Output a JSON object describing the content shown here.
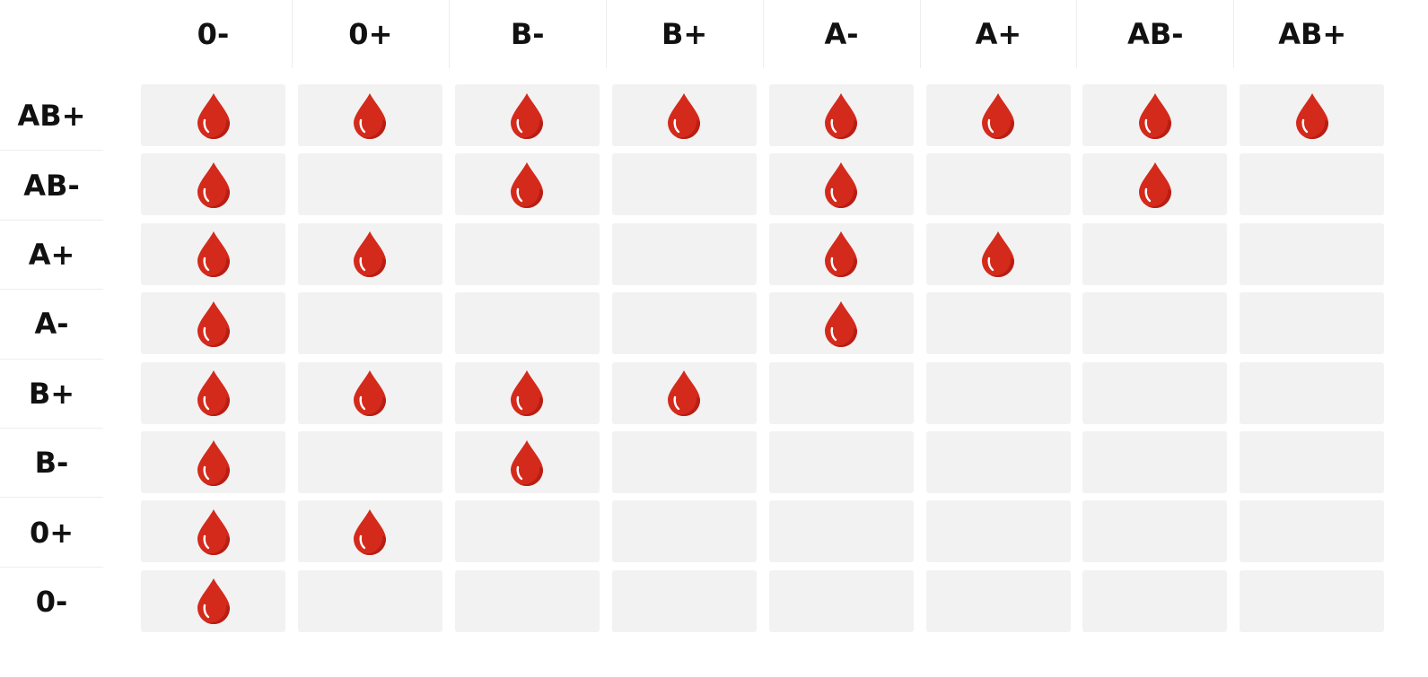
{
  "table": {
    "columns": [
      "0-",
      "0+",
      "B-",
      "B+",
      "A-",
      "A+",
      "AB-",
      "AB+"
    ],
    "rows": [
      "AB+",
      "AB-",
      "A+",
      "A-",
      "B+",
      "B-",
      "0+",
      "0-"
    ],
    "matrix": [
      [
        true,
        true,
        true,
        true,
        true,
        true,
        true,
        true
      ],
      [
        true,
        false,
        true,
        false,
        true,
        false,
        true,
        false
      ],
      [
        true,
        true,
        false,
        false,
        true,
        true,
        false,
        false
      ],
      [
        true,
        false,
        false,
        false,
        true,
        false,
        false,
        false
      ],
      [
        true,
        true,
        true,
        true,
        false,
        false,
        false,
        false
      ],
      [
        true,
        false,
        true,
        false,
        false,
        false,
        false,
        false
      ],
      [
        true,
        true,
        false,
        false,
        false,
        false,
        false,
        false
      ],
      [
        true,
        false,
        false,
        false,
        false,
        false,
        false,
        false
      ]
    ],
    "icon": "blood-drop-icon",
    "colors": {
      "drop": "#d42a1c",
      "drop_dark": "#b81e14",
      "cell_bg": "#f2f2f2",
      "text": "#111111"
    }
  }
}
